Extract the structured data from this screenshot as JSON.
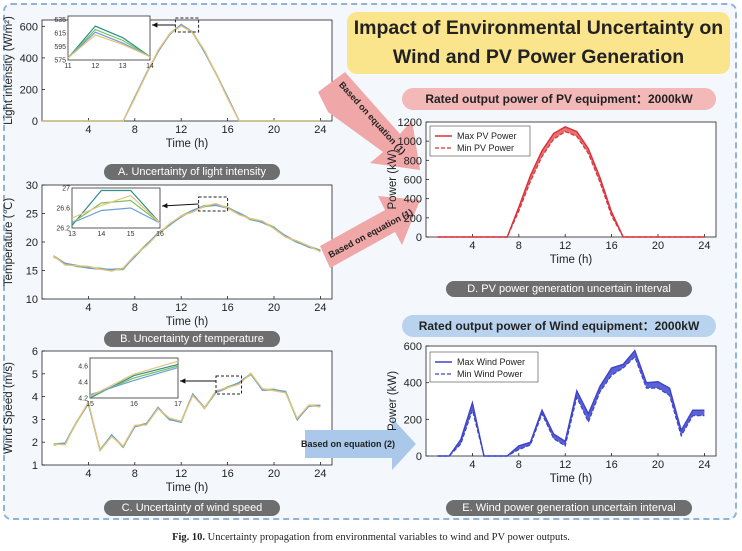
{
  "title": {
    "line1": "Impact of Environmental Uncertainty on",
    "line2": "Wind and PV Power Generation"
  },
  "pv_header": "Rated output power of PV equipment：2000kW",
  "wind_header": "Rated output power of Wind equipment：2000kW",
  "arrows": {
    "a": "Based on equation (1)",
    "b": "Based on equation (1)",
    "c": "Based on equation (2)"
  },
  "labels": {
    "A": "A. Uncertainty of light intensity",
    "B": "B. Uncertainty of temperature",
    "C": "C. Uncertainty of wind speed",
    "D": "D. PV power generation uncertain interval",
    "E": "E. Wind power generation uncertain interval"
  },
  "caption": {
    "bold": "Fig. 10.",
    "text": "Uncertainty propagation from environmental variables to wind and PV power outputs."
  },
  "chart_data": [
    {
      "id": "light",
      "type": "line",
      "xlabel": "Time (h)",
      "ylabel": "Light intensity (W/m²)",
      "xlim": [
        0,
        25
      ],
      "ylim": [
        0,
        640
      ],
      "xticks": [
        4,
        8,
        12,
        16,
        20,
        24
      ],
      "yticks": [
        0,
        200,
        400,
        600
      ],
      "x": [
        0,
        1,
        2,
        3,
        4,
        5,
        6,
        7,
        8,
        9,
        10,
        11,
        12,
        13,
        14,
        15,
        16,
        17,
        18,
        19,
        20,
        21,
        22,
        23,
        24
      ],
      "values": [
        0,
        0,
        0,
        0,
        0,
        0,
        0,
        0,
        150,
        300,
        440,
        550,
        610,
        560,
        440,
        300,
        150,
        0,
        0,
        0,
        0,
        0,
        0,
        0,
        0
      ],
      "inset": {
        "xlim": [
          11,
          14
        ],
        "ylim": [
          575,
          640
        ],
        "xticks": [
          11,
          12,
          13,
          14
        ],
        "yticks": [
          575,
          595,
          615,
          635
        ],
        "series": [
          [
            578,
            625,
            608,
            580
          ],
          [
            578,
            620,
            604,
            580
          ],
          [
            578,
            616,
            600,
            580
          ],
          [
            578,
            612,
            598,
            580
          ]
        ]
      }
    },
    {
      "id": "temp",
      "type": "line",
      "xlabel": "Time (h)",
      "ylabel": "Temperature (℃)",
      "xlim": [
        0,
        25
      ],
      "ylim": [
        10,
        30
      ],
      "xticks": [
        4,
        8,
        12,
        16,
        20,
        24
      ],
      "yticks": [
        10,
        15,
        20,
        25,
        30
      ],
      "x": [
        1,
        2,
        3,
        4,
        5,
        6,
        7,
        8,
        9,
        10,
        11,
        12,
        13,
        14,
        15,
        16,
        17,
        18,
        19,
        20,
        21,
        22,
        23,
        24
      ],
      "values": [
        17.5,
        16.2,
        15.8,
        15.5,
        15.3,
        15.1,
        15.3,
        17.5,
        19.5,
        21.5,
        23,
        24.5,
        25.5,
        26.3,
        26.5,
        26,
        25,
        24,
        23.5,
        22.5,
        21,
        20,
        19.2,
        18.5
      ],
      "inset": {
        "xlim": [
          13,
          16
        ],
        "ylim": [
          26.2,
          27
        ],
        "xticks": [
          13,
          14,
          15,
          16
        ],
        "yticks": [
          26.2,
          26.6,
          27.0
        ],
        "series": [
          [
            26.25,
            26.95,
            26.95,
            26.3
          ],
          [
            26.3,
            26.7,
            26.75,
            26.3
          ],
          [
            26.3,
            26.55,
            26.6,
            26.3
          ],
          [
            26.4,
            26.65,
            26.85,
            26.3
          ]
        ]
      }
    },
    {
      "id": "wind",
      "type": "line",
      "xlabel": "Time (h)",
      "ylabel": "Wind Speed (m/s)",
      "xlim": [
        0,
        25
      ],
      "ylim": [
        1,
        6
      ],
      "xticks": [
        4,
        8,
        12,
        16,
        20,
        24
      ],
      "yticks": [
        1,
        2,
        3,
        4,
        5,
        6
      ],
      "x": [
        1,
        2,
        3,
        4,
        5,
        6,
        7,
        8,
        9,
        10,
        11,
        12,
        13,
        14,
        15,
        16,
        17,
        18,
        19,
        20,
        21,
        22,
        23,
        24
      ],
      "values": [
        1.9,
        1.95,
        2.9,
        3.7,
        1.65,
        2.3,
        1.8,
        2.7,
        2.8,
        3.5,
        3.0,
        2.9,
        4.1,
        3.5,
        4.2,
        4.4,
        4.6,
        5.0,
        4.3,
        4.3,
        4.2,
        3.0,
        3.6,
        3.6
      ],
      "inset": {
        "xlim": [
          15,
          17
        ],
        "ylim": [
          4.2,
          4.7
        ],
        "xticks": [
          15,
          16,
          17
        ],
        "yticks": [
          4.2,
          4.4,
          4.6
        ],
        "series": [
          [
            4.2,
            4.48,
            4.62
          ],
          [
            4.22,
            4.45,
            4.6
          ],
          [
            4.24,
            4.42,
            4.58
          ],
          [
            4.22,
            4.5,
            4.66
          ]
        ]
      }
    },
    {
      "id": "pv",
      "type": "area",
      "xlabel": "Time (h)",
      "ylabel": "Power (kW)",
      "xlim": [
        0,
        25
      ],
      "ylim": [
        0,
        1200
      ],
      "xticks": [
        4,
        8,
        12,
        16,
        20,
        24
      ],
      "yticks": [
        0,
        200,
        400,
        600,
        800,
        1000,
        1200
      ],
      "x": [
        1,
        2,
        3,
        4,
        5,
        6,
        7,
        8,
        9,
        10,
        11,
        12,
        13,
        14,
        15,
        16,
        17,
        18,
        19,
        20,
        21,
        22,
        23,
        24
      ],
      "series": [
        {
          "name": "Max PV Power",
          "values": [
            0,
            0,
            0,
            0,
            0,
            0,
            0,
            310,
            640,
            900,
            1080,
            1150,
            1100,
            920,
            620,
            260,
            0,
            0,
            0,
            0,
            0,
            0,
            0,
            0
          ]
        },
        {
          "name": "Min PV Power",
          "values": [
            0,
            0,
            0,
            0,
            0,
            0,
            0,
            270,
            580,
            840,
            1020,
            1100,
            1050,
            870,
            570,
            220,
            0,
            0,
            0,
            0,
            0,
            0,
            0,
            0
          ]
        }
      ]
    },
    {
      "id": "windpower",
      "type": "area",
      "xlabel": "Time (h)",
      "ylabel": "Power (kW)",
      "xlim": [
        0,
        25
      ],
      "ylim": [
        0,
        600
      ],
      "xticks": [
        4,
        8,
        12,
        16,
        20,
        24
      ],
      "yticks": [
        0,
        200,
        400,
        600
      ],
      "x": [
        1,
        2,
        3,
        4,
        5,
        6,
        7,
        8,
        9,
        10,
        11,
        12,
        13,
        14,
        15,
        16,
        17,
        18,
        19,
        20,
        21,
        22,
        23,
        24
      ],
      "series": [
        {
          "name": "Max Wind Power",
          "values": [
            0,
            0,
            90,
            290,
            0,
            0,
            0,
            55,
            75,
            250,
            120,
            80,
            355,
            230,
            380,
            480,
            500,
            575,
            400,
            405,
            370,
            140,
            250,
            250
          ]
        },
        {
          "name": "Min Wind Power",
          "values": [
            0,
            0,
            65,
            250,
            0,
            0,
            0,
            35,
            60,
            230,
            95,
            55,
            320,
            185,
            350,
            440,
            480,
            540,
            370,
            370,
            330,
            110,
            220,
            220
          ]
        }
      ]
    }
  ]
}
